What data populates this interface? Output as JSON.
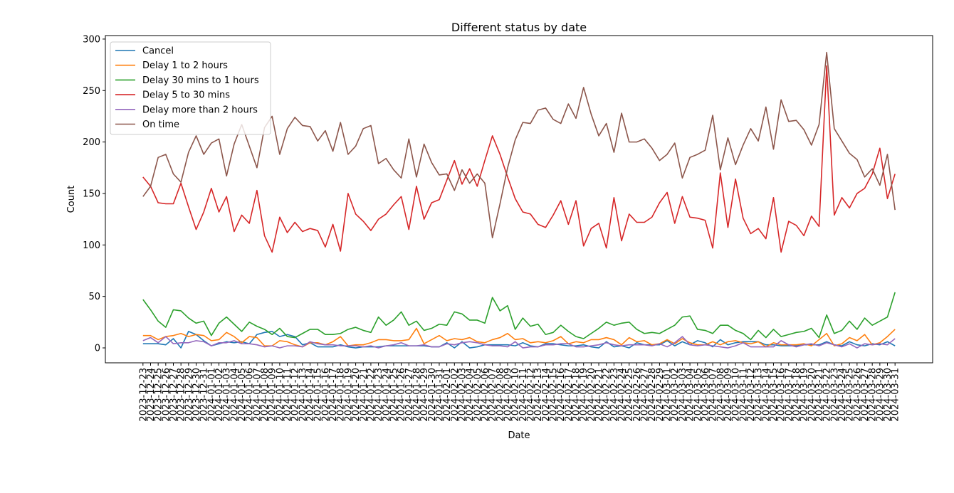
{
  "chart_data": {
    "type": "line",
    "title": "Different status by date",
    "xlabel": "Date",
    "ylabel": "Count",
    "categories": [
      "2023-12-23",
      "2023-12-24",
      "2023-12-25",
      "2023-12-26",
      "2023-12-27",
      "2023-12-28",
      "2023-12-29",
      "2023-12-30",
      "2023-12-31",
      "2024-01-01",
      "2024-01-02",
      "2024-01-03",
      "2024-01-04",
      "2024-01-05",
      "2024-01-06",
      "2024-01-07",
      "2024-01-08",
      "2024-01-09",
      "2024-01-10",
      "2024-01-11",
      "2024-01-12",
      "2024-01-13",
      "2024-01-14",
      "2024-01-15",
      "2024-01-16",
      "2024-01-17",
      "2024-01-18",
      "2024-01-19",
      "2024-01-20",
      "2024-01-21",
      "2024-01-22",
      "2024-01-23",
      "2024-01-24",
      "2024-01-25",
      "2024-01-26",
      "2024-01-27",
      "2024-01-28",
      "2024-01-29",
      "2024-01-30",
      "2024-01-31",
      "2024-02-01",
      "2024-02-02",
      "2024-02-03",
      "2024-02-04",
      "2024-02-05",
      "2024-02-06",
      "2024-02-07",
      "2024-02-08",
      "2024-02-09",
      "2024-02-10",
      "2024-02-11",
      "2024-02-12",
      "2024-02-13",
      "2024-02-14",
      "2024-02-15",
      "2024-02-16",
      "2024-02-17",
      "2024-02-18",
      "2024-02-19",
      "2024-02-20",
      "2024-02-21",
      "2024-02-22",
      "2024-02-23",
      "2024-02-24",
      "2024-02-25",
      "2024-02-26",
      "2024-02-27",
      "2024-02-28",
      "2024-02-29",
      "2024-03-01",
      "2024-03-02",
      "2024-03-03",
      "2024-03-04",
      "2024-03-05",
      "2024-03-06",
      "2024-03-07",
      "2024-03-08",
      "2024-03-09",
      "2024-03-10",
      "2024-03-11",
      "2024-03-12",
      "2024-03-13",
      "2024-03-14",
      "2024-03-15",
      "2024-03-16",
      "2024-03-17",
      "2024-03-18",
      "2024-03-19",
      "2024-03-20",
      "2024-03-21",
      "2024-03-22",
      "2024-03-23",
      "2024-03-24",
      "2024-03-25",
      "2024-03-26",
      "2024-03-27",
      "2024-03-28",
      "2024-03-29",
      "2024-03-30",
      "2024-03-31"
    ],
    "series": [
      {
        "name": "Cancel",
        "color": "#1f77b4",
        "values": [
          4,
          4,
          4,
          3,
          9,
          0,
          16,
          13,
          7,
          2,
          4,
          6,
          5,
          6,
          4,
          13,
          15,
          16,
          11,
          13,
          11,
          3,
          5,
          1,
          1,
          1,
          3,
          1,
          0,
          1,
          1,
          1,
          2,
          2,
          2,
          2,
          2,
          2,
          1,
          1,
          5,
          0,
          6,
          0,
          1,
          3,
          3,
          3,
          3,
          2,
          5,
          2,
          1,
          4,
          4,
          3,
          2,
          2,
          3,
          1,
          0,
          6,
          1,
          2,
          0,
          5,
          3,
          3,
          3,
          7,
          2,
          6,
          3,
          7,
          5,
          1,
          8,
          3,
          5,
          6,
          6,
          6,
          3,
          3,
          2,
          2,
          2,
          3,
          3,
          3,
          6,
          3,
          2,
          6,
          3,
          2,
          4,
          3,
          6,
          2
        ]
      },
      {
        "name": "Delay 1 to 2 hours",
        "color": "#ff7f0e",
        "values": [
          12,
          12,
          8,
          11,
          12,
          14,
          11,
          13,
          12,
          7,
          8,
          15,
          11,
          5,
          11,
          10,
          2,
          2,
          7,
          6,
          3,
          1,
          5,
          5,
          3,
          6,
          11,
          2,
          3,
          3,
          5,
          8,
          8,
          7,
          7,
          8,
          19,
          4,
          8,
          12,
          7,
          9,
          8,
          10,
          6,
          5,
          8,
          10,
          14,
          8,
          9,
          5,
          6,
          5,
          7,
          11,
          4,
          6,
          5,
          8,
          8,
          10,
          8,
          3,
          10,
          6,
          7,
          3,
          4,
          8,
          4,
          9,
          5,
          3,
          3,
          6,
          3,
          6,
          7,
          5,
          4,
          6,
          1,
          5,
          3,
          3,
          3,
          4,
          2,
          8,
          14,
          2,
          4,
          10,
          7,
          13,
          3,
          5,
          11,
          18
        ]
      },
      {
        "name": "Delay 30 mins to 1 hours",
        "color": "#2ca02c",
        "values": [
          47,
          37,
          26,
          20,
          37,
          36,
          29,
          24,
          26,
          12,
          24,
          30,
          23,
          16,
          25,
          21,
          18,
          13,
          19,
          11,
          10,
          14,
          18,
          18,
          13,
          13,
          14,
          18,
          20,
          17,
          15,
          30,
          22,
          27,
          35,
          22,
          26,
          17,
          19,
          23,
          22,
          35,
          33,
          27,
          27,
          24,
          49,
          36,
          41,
          18,
          29,
          21,
          23,
          13,
          15,
          22,
          16,
          11,
          9,
          14,
          19,
          25,
          22,
          24,
          25,
          18,
          14,
          15,
          14,
          18,
          22,
          30,
          31,
          18,
          17,
          14,
          22,
          22,
          17,
          14,
          8,
          17,
          10,
          18,
          11,
          13,
          15,
          16,
          19,
          10,
          32,
          14,
          17,
          26,
          18,
          29,
          22,
          26,
          30,
          54
        ]
      },
      {
        "name": "Delay 5 to 30 mins",
        "color": "#d62728",
        "values": [
          166,
          157,
          141,
          140,
          140,
          160,
          137,
          115,
          132,
          155,
          132,
          147,
          113,
          129,
          121,
          153,
          109,
          93,
          127,
          112,
          122,
          113,
          116,
          114,
          98,
          120,
          94,
          150,
          130,
          123,
          114,
          125,
          130,
          139,
          147,
          115,
          157,
          125,
          141,
          144,
          163,
          182,
          159,
          174,
          157,
          182,
          206,
          188,
          166,
          145,
          132,
          130,
          120,
          117,
          129,
          143,
          120,
          143,
          99,
          116,
          121,
          97,
          146,
          104,
          130,
          122,
          122,
          127,
          141,
          151,
          121,
          147,
          127,
          126,
          124,
          97,
          170,
          117,
          164,
          126,
          111,
          116,
          106,
          146,
          93,
          123,
          119,
          109,
          128,
          118,
          274,
          129,
          146,
          136,
          150,
          155,
          169,
          194,
          145,
          169
        ]
      },
      {
        "name": "Delay more than 2 hours",
        "color": "#9467bd",
        "values": [
          7,
          10,
          5,
          11,
          4,
          5,
          5,
          7,
          6,
          2,
          5,
          5,
          7,
          4,
          4,
          3,
          1,
          2,
          0,
          2,
          2,
          1,
          6,
          4,
          3,
          3,
          2,
          2,
          2,
          1,
          2,
          0,
          2,
          3,
          5,
          2,
          2,
          3,
          1,
          1,
          4,
          3,
          5,
          6,
          5,
          3,
          2,
          2,
          1,
          6,
          0,
          1,
          1,
          3,
          3,
          4,
          4,
          1,
          1,
          2,
          3,
          5,
          3,
          2,
          3,
          3,
          3,
          2,
          4,
          1,
          5,
          11,
          3,
          2,
          3,
          2,
          1,
          0,
          2,
          5,
          1,
          1,
          1,
          1,
          7,
          3,
          1,
          3,
          4,
          2,
          5,
          3,
          1,
          4,
          0,
          4,
          3,
          4,
          3,
          9
        ]
      },
      {
        "name": "On time",
        "color": "#8c564b",
        "values": [
          147,
          157,
          185,
          188,
          169,
          161,
          190,
          206,
          188,
          199,
          203,
          167,
          198,
          217,
          196,
          175,
          214,
          225,
          188,
          213,
          224,
          216,
          215,
          201,
          211,
          191,
          219,
          188,
          196,
          213,
          216,
          179,
          184,
          173,
          165,
          203,
          166,
          198,
          180,
          168,
          169,
          153,
          173,
          160,
          169,
          160,
          107,
          140,
          175,
          202,
          219,
          218,
          231,
          233,
          222,
          218,
          237,
          223,
          253,
          227,
          206,
          218,
          190,
          228,
          200,
          200,
          203,
          194,
          182,
          188,
          199,
          165,
          185,
          188,
          192,
          226,
          173,
          204,
          178,
          197,
          213,
          201,
          234,
          193,
          241,
          220,
          221,
          212,
          197,
          217,
          287,
          213,
          201,
          189,
          183,
          166,
          174,
          158,
          188,
          134
        ]
      }
    ],
    "ylim": [
      -14.5,
      303.4
    ],
    "yticks": [
      0,
      50,
      100,
      150,
      200,
      250,
      300
    ],
    "legend": "upper left",
    "grid": false
  }
}
